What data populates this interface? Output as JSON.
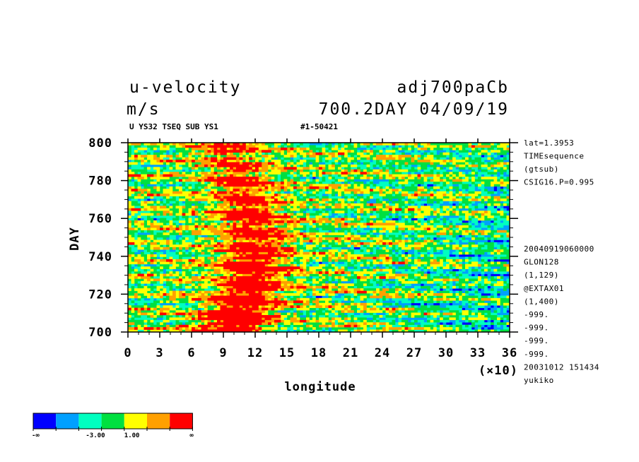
{
  "header": {
    "variable": "u-velocity",
    "units": "m/s",
    "experiment": "adj700paCb",
    "range_text": "700.2DAY 04/09/19",
    "subtitle_left": "U YS32 TSEQ SUB YS1",
    "subtitle_right": "#1-50421"
  },
  "right_info": {
    "top": [
      "lat=1.3953",
      "TIMEsequence",
      "(gtsub)",
      "CSIG16.P=0.995"
    ],
    "bottom": [
      "20040919060000",
      "GLON128",
      "(1,129)",
      "@EXTAX01",
      "(1,400)",
      "-999.",
      "-999.",
      "-999.",
      "-999.",
      "20031012 151434",
      "yukiko"
    ]
  },
  "colorbar": {
    "colors": [
      "#0000ff",
      "#00a0ff",
      "#00ffc0",
      "#00e040",
      "#ffff00",
      "#ffa000",
      "#ff0000"
    ],
    "labels": [
      "-∞",
      "-3.00",
      "1.00",
      "∞"
    ]
  },
  "chart_data": {
    "type": "heatmap",
    "title": "u-velocity",
    "xlabel": "longitude",
    "x_multiplier": "(×10)",
    "ylabel": "DAY",
    "xlim": [
      0,
      36
    ],
    "ylim": [
      700,
      800
    ],
    "x_ticks": [
      "0",
      "3",
      "6",
      "9",
      "12",
      "15",
      "18",
      "21",
      "24",
      "27",
      "30",
      "33",
      "36"
    ],
    "y_ticks": [
      "700",
      "720",
      "740",
      "760",
      "780",
      "800"
    ],
    "levels": [
      -3.0,
      1.0
    ],
    "color_scale": [
      "#0000ff",
      "#00a0ff",
      "#00ffc0",
      "#00e040",
      "#ffff00",
      "#ffa000",
      "#ff0000"
    ],
    "description": "Shaded time-longitude section; westerly (red) maxima concentrated near longitude 90-150, weaker (blue) values toward longitude 240-360"
  }
}
